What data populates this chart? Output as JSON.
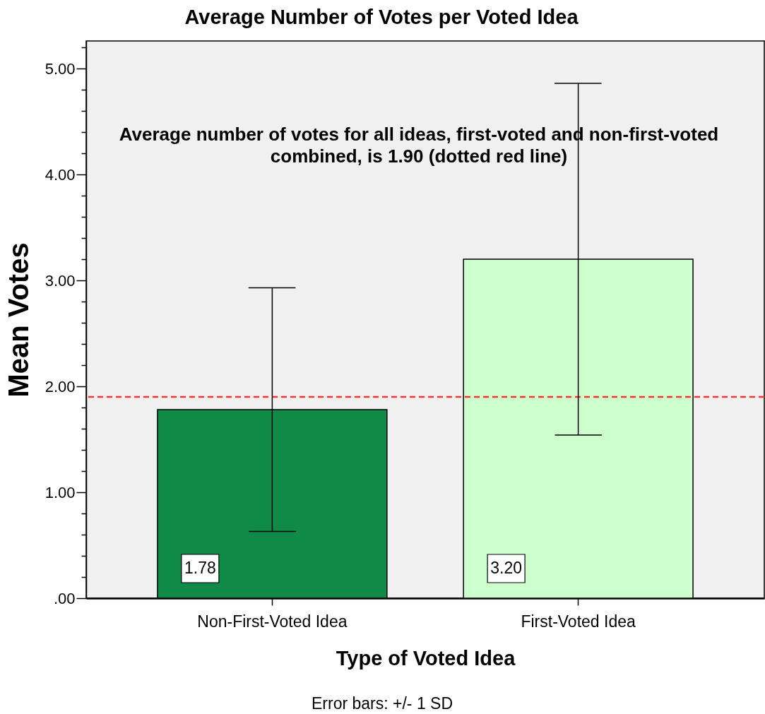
{
  "chart_data": {
    "type": "bar",
    "title": "Average Number of Votes per Voted Idea",
    "xlabel": "Type of Voted Idea",
    "ylabel": "Mean Votes",
    "categories": [
      "Non-First-Voted Idea",
      "First-Voted Idea"
    ],
    "values": [
      1.78,
      3.2
    ],
    "colors": [
      "#108b47",
      "#ccffcc"
    ],
    "errors": [
      1.15,
      1.66
    ],
    "value_labels": [
      "1.78",
      "3.20"
    ],
    "ylim": [
      0,
      5.26
    ],
    "yticks": [
      {
        "value": 0,
        "label": ".00"
      },
      {
        "value": 0.2,
        "label": null
      },
      {
        "value": 0.4,
        "label": null
      },
      {
        "value": 0.6,
        "label": null
      },
      {
        "value": 0.8,
        "label": null
      },
      {
        "value": 1,
        "label": "1.00"
      },
      {
        "value": 1.2,
        "label": null
      },
      {
        "value": 1.4,
        "label": null
      },
      {
        "value": 1.6,
        "label": null
      },
      {
        "value": 1.8,
        "label": null
      },
      {
        "value": 2,
        "label": "2.00"
      },
      {
        "value": 2.2,
        "label": null
      },
      {
        "value": 2.4,
        "label": null
      },
      {
        "value": 2.6,
        "label": null
      },
      {
        "value": 2.8,
        "label": null
      },
      {
        "value": 3,
        "label": "3.00"
      },
      {
        "value": 3.2,
        "label": null
      },
      {
        "value": 3.4,
        "label": null
      },
      {
        "value": 3.6,
        "label": null
      },
      {
        "value": 3.8,
        "label": null
      },
      {
        "value": 4,
        "label": "4.00"
      },
      {
        "value": 4.2,
        "label": null
      },
      {
        "value": 4.4,
        "label": null
      },
      {
        "value": 4.6,
        "label": null
      },
      {
        "value": 4.8,
        "label": null
      },
      {
        "value": 5,
        "label": "5.00"
      },
      {
        "value": 5.2,
        "label": null
      }
    ],
    "ref_lines": [
      {
        "axis": "y",
        "value": 1.9,
        "color": "#ff3333",
        "line_style": "dashed"
      }
    ],
    "annotations": [
      "Average number of votes for all ideas, first-voted and non-first-voted combined, is 1.90 (dotted red line)",
      "Error bars: +/- 1 SD"
    ],
    "grid": false,
    "legend": false
  }
}
